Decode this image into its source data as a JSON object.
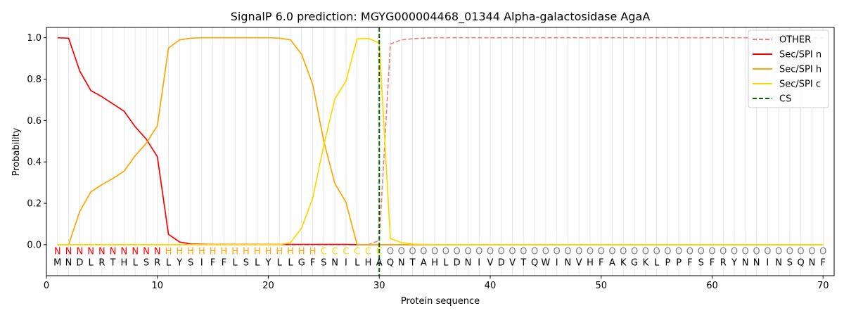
{
  "chart_data": {
    "type": "line",
    "title": "SignalP 6.0 prediction: MGYG000004468_01344 Alpha-galactosidase AgaA",
    "xlabel": "Protein sequence",
    "ylabel": "Probability",
    "xlim": [
      0,
      71
    ],
    "ylim": [
      -0.15,
      1.05
    ],
    "x_ticks": [
      0,
      10,
      20,
      30,
      40,
      50,
      60,
      70
    ],
    "y_ticks": [
      0.0,
      0.2,
      0.4,
      0.6,
      0.8,
      1.0
    ],
    "x_tick_labels": [
      "0",
      "10",
      "20",
      "30",
      "40",
      "50",
      "60",
      "70"
    ],
    "y_tick_labels": [
      "0.0",
      "0.2",
      "0.4",
      "0.6",
      "0.8",
      "1.0"
    ],
    "grid": "vertical lines at each residue position",
    "legend_position": "top-right",
    "sequence": [
      "M",
      "N",
      "D",
      "L",
      "R",
      "T",
      "H",
      "L",
      "S",
      "R",
      "L",
      "Y",
      "S",
      "I",
      "F",
      "F",
      "L",
      "S",
      "L",
      "Y",
      "L",
      "L",
      "G",
      "F",
      "S",
      "N",
      "I",
      "L",
      "H",
      "A",
      "Q",
      "N",
      "T",
      "A",
      "H",
      "L",
      "D",
      "N",
      "I",
      "V",
      "D",
      "V",
      "T",
      "Q",
      "W",
      "I",
      "N",
      "V",
      "H",
      "F",
      "A",
      "K",
      "G",
      "K",
      "L",
      "P",
      "P",
      "F",
      "S",
      "F",
      "R",
      "Y",
      "N",
      "N",
      "I",
      "N",
      "S",
      "Q",
      "N",
      "F"
    ],
    "region_labels": [
      "N",
      "N",
      "N",
      "N",
      "N",
      "N",
      "N",
      "N",
      "N",
      "N",
      "H",
      "H",
      "H",
      "H",
      "H",
      "H",
      "H",
      "H",
      "H",
      "H",
      "H",
      "H",
      "H",
      "H",
      "C",
      "C",
      "C",
      "C",
      "C",
      "C",
      "O",
      "O",
      "O",
      "O",
      "O",
      "O",
      "O",
      "O",
      "O",
      "O",
      "O",
      "O",
      "O",
      "O",
      "O",
      "O",
      "O",
      "O",
      "O",
      "O",
      "O",
      "O",
      "O",
      "O",
      "O",
      "O",
      "O",
      "O",
      "O",
      "O",
      "O",
      "O",
      "O",
      "O",
      "O",
      "O",
      "O",
      "O",
      "O",
      "O"
    ],
    "region_colors": {
      "N": "#ff0000",
      "H": "#ffa500",
      "C": "#ffd700",
      "O": "#808080"
    },
    "series": [
      {
        "name": "OTHER",
        "color": "#f08080",
        "dash": "dashed",
        "values": [
          0,
          0,
          0,
          0,
          0,
          0,
          0,
          0,
          0,
          0,
          0,
          0,
          0,
          0,
          0,
          0,
          0,
          0,
          0,
          0,
          0,
          0,
          0,
          0,
          0,
          0,
          0,
          0,
          0,
          0.02,
          0.97,
          0.99,
          0.995,
          0.998,
          1,
          1,
          1,
          1,
          1,
          1,
          1,
          1,
          1,
          1,
          1,
          1,
          1,
          1,
          1,
          1,
          1,
          1,
          1,
          1,
          1,
          1,
          1,
          1,
          1,
          1,
          1,
          1,
          1,
          1,
          1,
          1,
          1,
          1,
          1,
          1
        ]
      },
      {
        "name": "Sec/SPI n",
        "color": "#ff0000",
        "dash": "solid",
        "values": [
          1.0,
          0.998,
          0.84,
          0.745,
          0.715,
          0.68,
          0.645,
          0.57,
          0.51,
          0.425,
          0.05,
          0.013,
          0.003,
          0.002,
          0.001,
          0.001,
          0.001,
          0.001,
          0.001,
          0.001,
          0.001,
          0.001,
          0.001,
          0.001,
          0.001,
          0.001,
          0.001,
          0,
          0,
          0,
          0,
          0,
          0,
          0,
          0,
          0,
          0,
          0,
          0,
          0,
          0,
          0,
          0,
          0,
          0,
          0,
          0,
          0,
          0,
          0,
          0,
          0,
          0,
          0,
          0,
          0,
          0,
          0,
          0,
          0,
          0,
          0,
          0,
          0,
          0,
          0,
          0,
          0,
          0,
          0
        ]
      },
      {
        "name": "Sec/SPI h",
        "color": "#ffa500",
        "dash": "solid",
        "values": [
          0,
          0,
          0.16,
          0.255,
          0.29,
          0.32,
          0.355,
          0.43,
          0.49,
          0.575,
          0.95,
          0.99,
          0.998,
          1.0,
          1.0,
          1.0,
          1.0,
          1.0,
          1.0,
          1.0,
          0.998,
          0.99,
          0.92,
          0.775,
          0.5,
          0.295,
          0.205,
          0,
          0,
          0,
          0,
          0,
          0,
          0,
          0,
          0,
          0,
          0,
          0,
          0,
          0,
          0,
          0,
          0,
          0,
          0,
          0,
          0,
          0,
          0,
          0,
          0,
          0,
          0,
          0,
          0,
          0,
          0,
          0,
          0,
          0,
          0,
          0,
          0,
          0,
          0,
          0,
          0,
          0,
          0
        ]
      },
      {
        "name": "Sec/SPI c",
        "color": "#ffd700",
        "dash": "solid",
        "values": [
          0,
          0,
          0,
          0,
          0,
          0,
          0,
          0,
          0,
          0,
          0,
          0,
          0,
          0,
          0,
          0,
          0,
          0,
          0,
          0,
          0,
          0.01,
          0.08,
          0.225,
          0.48,
          0.705,
          0.79,
          0.995,
          0.997,
          0.975,
          0.03,
          0.01,
          0.003,
          0.001,
          0,
          0,
          0,
          0,
          0,
          0,
          0,
          0,
          0,
          0,
          0,
          0,
          0,
          0,
          0,
          0,
          0,
          0,
          0,
          0,
          0,
          0,
          0,
          0,
          0,
          0,
          0,
          0,
          0,
          0,
          0,
          0,
          0,
          0,
          0,
          0
        ]
      },
      {
        "name": "CS",
        "color": "#006400",
        "dash": "dashed",
        "type": "vline",
        "x": 30
      }
    ]
  }
}
